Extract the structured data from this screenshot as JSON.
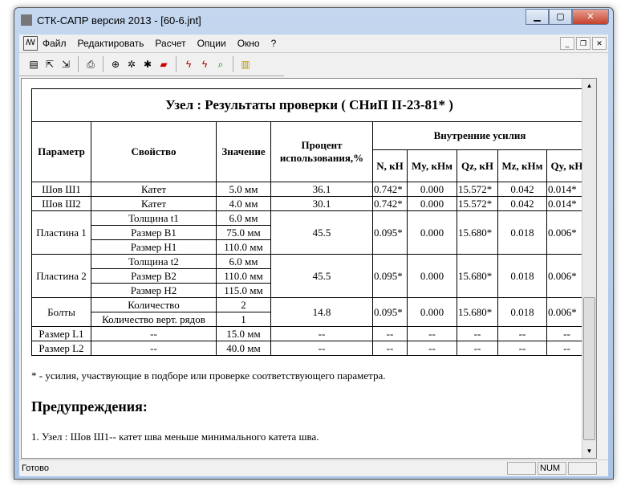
{
  "window": {
    "title": "СТК-САПР версия 2013 - [60-6.jnt]"
  },
  "menu": [
    "Файл",
    "Редактировать",
    "Расчет",
    "Опции",
    "Окно",
    "?"
  ],
  "table": {
    "title": "Узел : Результаты проверки ( СНиП II-23-81* )",
    "headers": {
      "param": "Параметр",
      "prop": "Свойство",
      "value": "Значение",
      "percent": "Процент использования,%",
      "forces": "Внутренние усилия",
      "N": "N, кН",
      "My": "My, кНм",
      "Qz": "Qz, кН",
      "Mz": "Mz, кНм",
      "Qy": "Qy, кН"
    },
    "groups": [
      {
        "param": "Шов Ш1",
        "rows": [
          {
            "prop": "Катет",
            "value": "5.0 мм"
          }
        ],
        "percent": "36.1",
        "N": "0.742*",
        "My": "0.000",
        "Qz": "15.572*",
        "Mz": "0.042",
        "Qy": "0.014*"
      },
      {
        "param": "Шов Ш2",
        "rows": [
          {
            "prop": "Катет",
            "value": "4.0 мм"
          }
        ],
        "percent": "30.1",
        "N": "0.742*",
        "My": "0.000",
        "Qz": "15.572*",
        "Mz": "0.042",
        "Qy": "0.014*"
      },
      {
        "param": "Пластина 1",
        "rows": [
          {
            "prop": "Толщина t1",
            "value": "6.0 мм"
          },
          {
            "prop": "Размер B1",
            "value": "75.0 мм"
          },
          {
            "prop": "Размер H1",
            "value": "110.0 мм"
          }
        ],
        "percent": "45.5",
        "N": "0.095*",
        "My": "0.000",
        "Qz": "15.680*",
        "Mz": "0.018",
        "Qy": "0.006*"
      },
      {
        "param": "Пластина 2",
        "rows": [
          {
            "prop": "Толщина t2",
            "value": "6.0 мм"
          },
          {
            "prop": "Размер B2",
            "value": "110.0 мм"
          },
          {
            "prop": "Размер H2",
            "value": "115.0 мм"
          }
        ],
        "percent": "45.5",
        "N": "0.095*",
        "My": "0.000",
        "Qz": "15.680*",
        "Mz": "0.018",
        "Qy": "0.006*"
      },
      {
        "param": "Болты",
        "rows": [
          {
            "prop": "Количество",
            "value": "2"
          },
          {
            "prop": "Количество верт. рядов",
            "value": "1"
          }
        ],
        "percent": "14.8",
        "N": "0.095*",
        "My": "0.000",
        "Qz": "15.680*",
        "Mz": "0.018",
        "Qy": "0.006*"
      },
      {
        "param": "Размер L1",
        "rows": [
          {
            "prop": "--",
            "value": "15.0 мм"
          }
        ],
        "percent": "--",
        "N": "--",
        "My": "--",
        "Qz": "--",
        "Mz": "--",
        "Qy": "--"
      },
      {
        "param": "Размер L2",
        "rows": [
          {
            "prop": "--",
            "value": "40.0 мм"
          }
        ],
        "percent": "--",
        "N": "--",
        "My": "--",
        "Qz": "--",
        "Mz": "--",
        "Qy": "--"
      }
    ]
  },
  "note": "* - усилия, участвующие в подборе или проверке соответствующего параметра.",
  "warnings": {
    "title": "Предупреждения:",
    "items": [
      "1. Узел : Шов Ш1-- катет шва меньше минимального катета шва."
    ]
  },
  "status": {
    "text": "Готово",
    "num": "NUM"
  }
}
